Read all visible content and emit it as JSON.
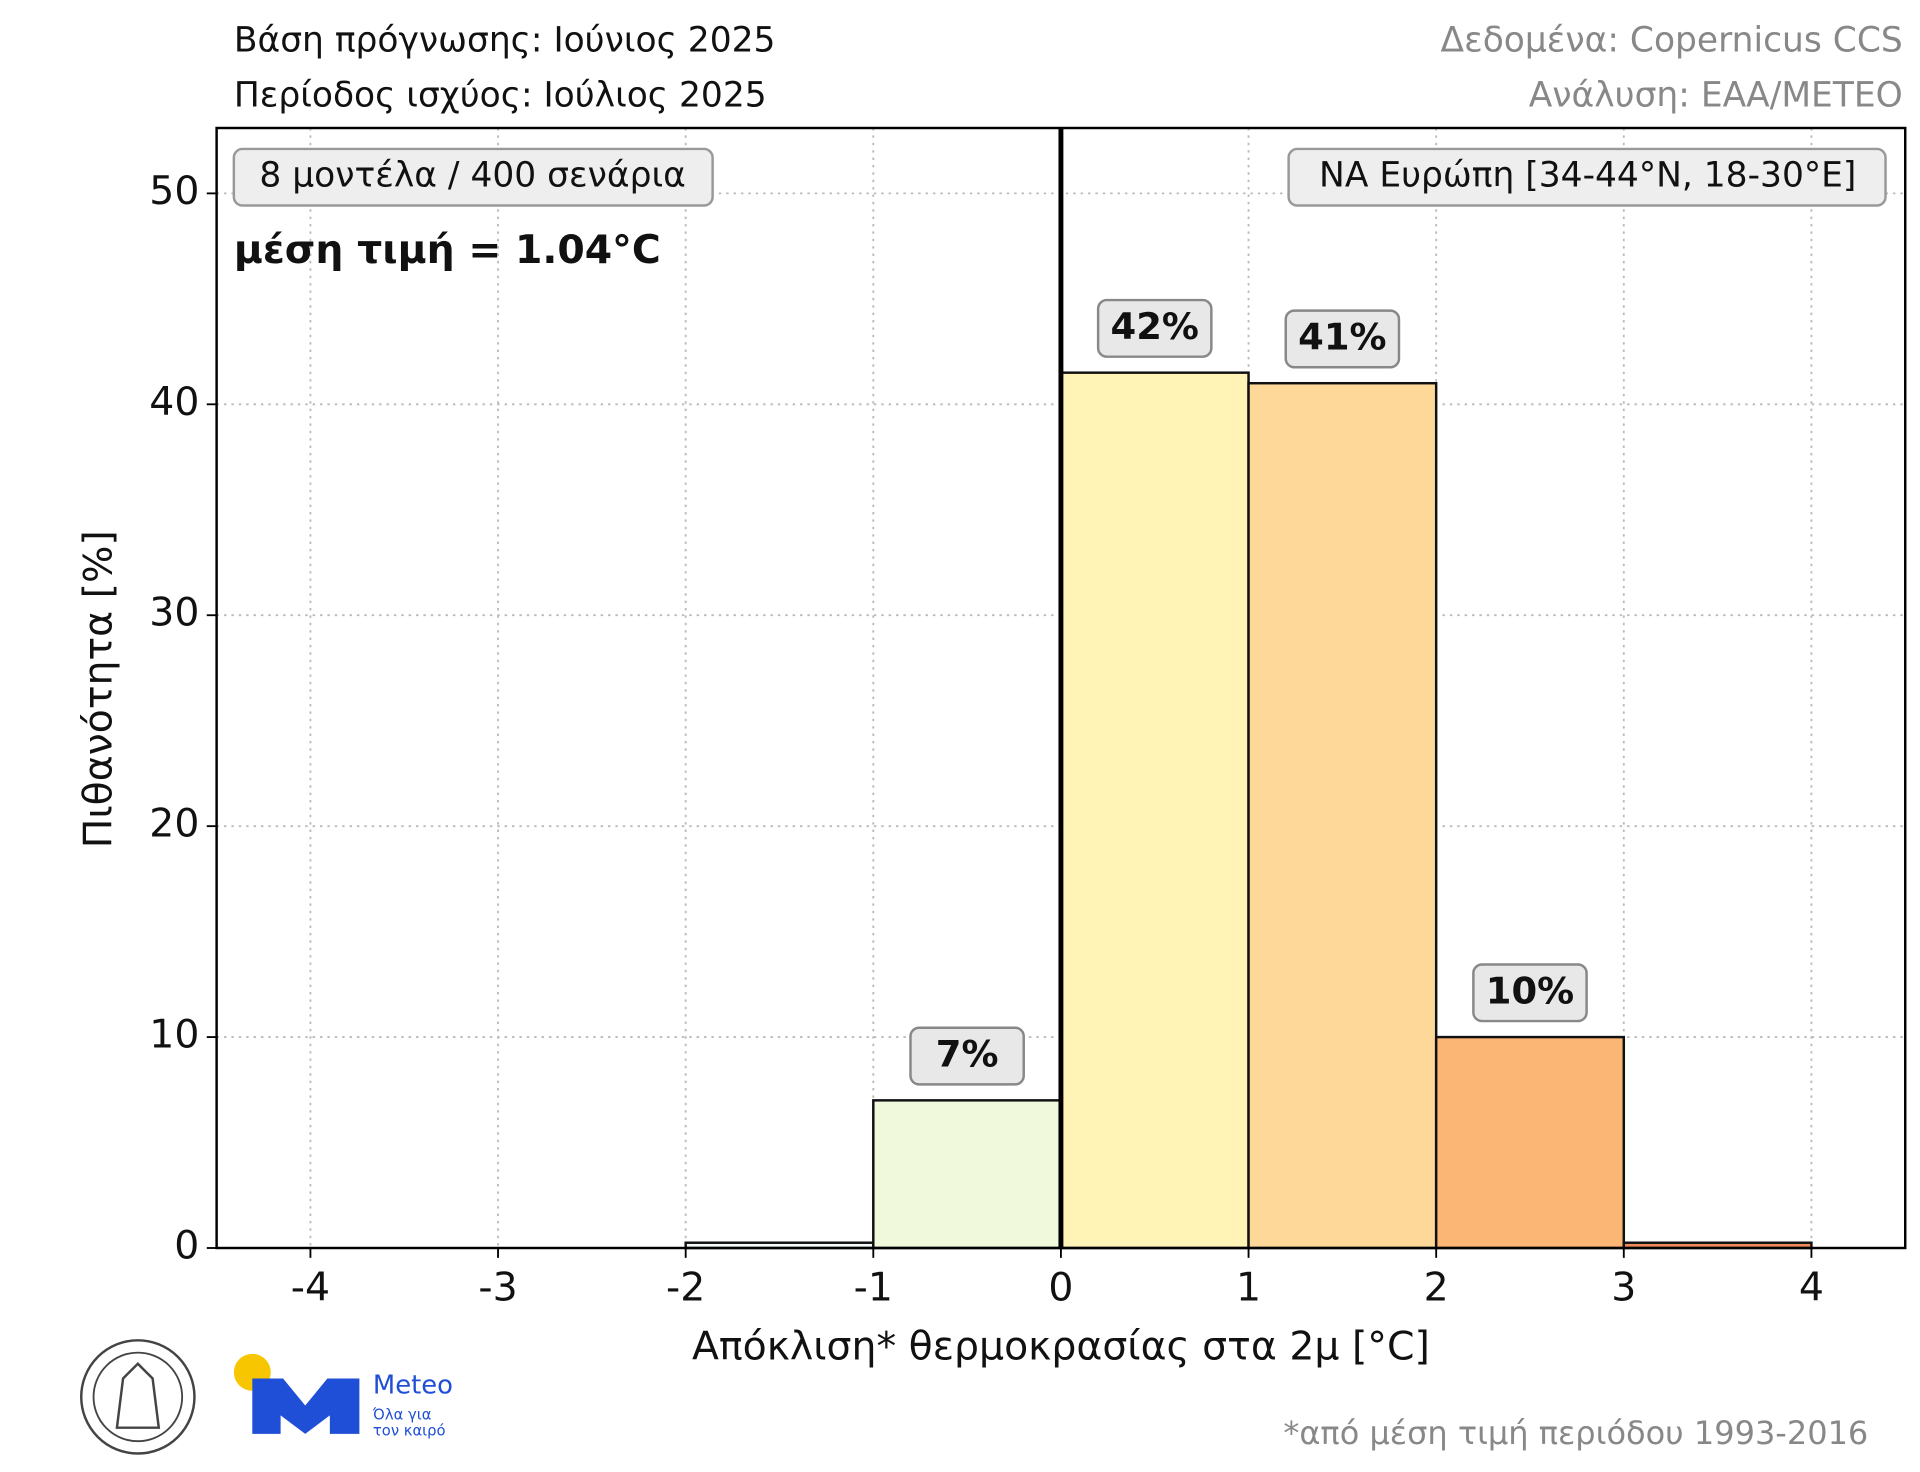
{
  "header": {
    "forecast_base": "Βάση πρόγνωσης: Ιούνιος 2025",
    "valid_period": "Περίοδος ισχύος: Ιούλιος 2025",
    "data_source": "Δεδομένα: Copernicus CCS",
    "analysis": "Ανάλυση: ΕΑΑ/METEO"
  },
  "chart_data": {
    "type": "histogram",
    "ensemble_box": "8 μοντέλα / 400 σενάρια",
    "region_box": "ΝΑ Ευρώπη [34-44°N, 18-30°E]",
    "mean_annotation": "μέση τιμή = 1.04°C",
    "x_label": "Απόκλιση* θερμοκρασίας στα 2μ [°C]",
    "y_label": "Πιθανότητα [%]",
    "bins": [
      -2,
      -1,
      0,
      1,
      2,
      3,
      4
    ],
    "values": [
      0.25,
      7,
      41.5,
      41,
      10,
      0.25
    ],
    "value_labels": [
      null,
      "7%",
      "42%",
      "41%",
      "10%",
      null
    ],
    "colors": [
      "#f4fbfb",
      "#f1f9dc",
      "#fff3b6",
      "#fdd898",
      "#fbb675",
      "#f08a5c"
    ],
    "reference_line": 0,
    "xlim": [
      -4.5,
      4.5
    ],
    "xticks": [
      -4,
      -3,
      -2,
      -1,
      0,
      1,
      2,
      3,
      4
    ],
    "ylim": [
      0,
      53.1
    ],
    "yticks": [
      0,
      10,
      20,
      30,
      40,
      50
    ],
    "grid": true
  },
  "footnote": "*από μέση τιμή περιόδου 1993-2016",
  "logo": {
    "name": "Meteo",
    "tagline_1": "Όλα για",
    "tagline_2": "τον καιρό"
  }
}
